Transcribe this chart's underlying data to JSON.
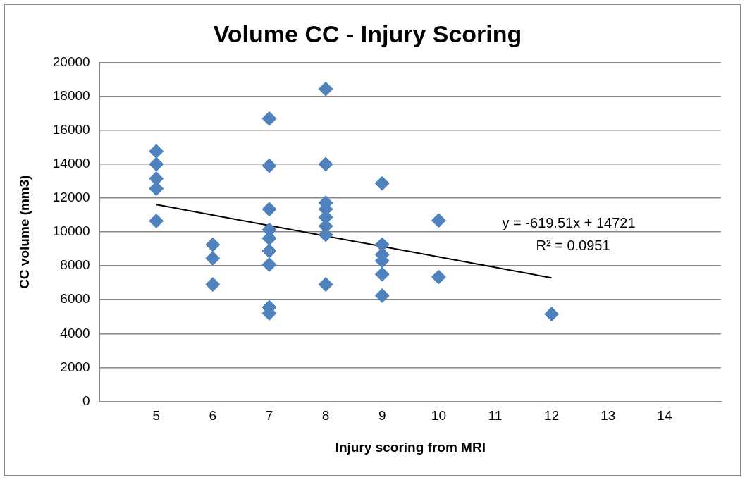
{
  "chart_data": {
    "type": "scatter",
    "title": "Volume CC - Injury Scoring",
    "xlabel": "Injury scoring from MRI",
    "ylabel": "CC volume (mm3)",
    "xlim": [
      4,
      15
    ],
    "xticks": [
      5,
      6,
      7,
      8,
      9,
      10,
      11,
      12,
      13,
      14
    ],
    "ylim": [
      0,
      20000
    ],
    "yticks": [
      0,
      2000,
      4000,
      6000,
      8000,
      10000,
      12000,
      14000,
      16000,
      18000,
      20000
    ],
    "grid": "y",
    "legend": false,
    "marker": "diamond",
    "series": [
      {
        "color": "#4f81bd",
        "x": [
          5,
          5,
          5,
          5,
          5,
          6,
          6,
          6,
          7,
          7,
          7,
          7,
          7,
          7,
          7,
          7,
          7,
          8,
          8,
          8,
          8,
          8,
          8,
          8,
          8,
          9,
          9,
          9,
          9,
          9,
          9,
          10,
          10,
          12
        ],
        "values": [
          14760,
          14000,
          13150,
          12560,
          10650,
          9250,
          8440,
          6900,
          16690,
          13910,
          11350,
          10130,
          9620,
          8880,
          8070,
          5550,
          5200,
          18440,
          14000,
          11720,
          11350,
          10870,
          10350,
          9840,
          6900,
          12870,
          9250,
          8660,
          8300,
          7500,
          6240,
          10680,
          7340,
          5150
        ]
      },
      {
        "type": "line",
        "color": "#000000",
        "marker": "none",
        "x": [
          5,
          12
        ],
        "values": [
          11620,
          7290
        ]
      }
    ],
    "annotations": [
      "y = -619.51x + 14721",
      "R² = 0.0951"
    ]
  }
}
